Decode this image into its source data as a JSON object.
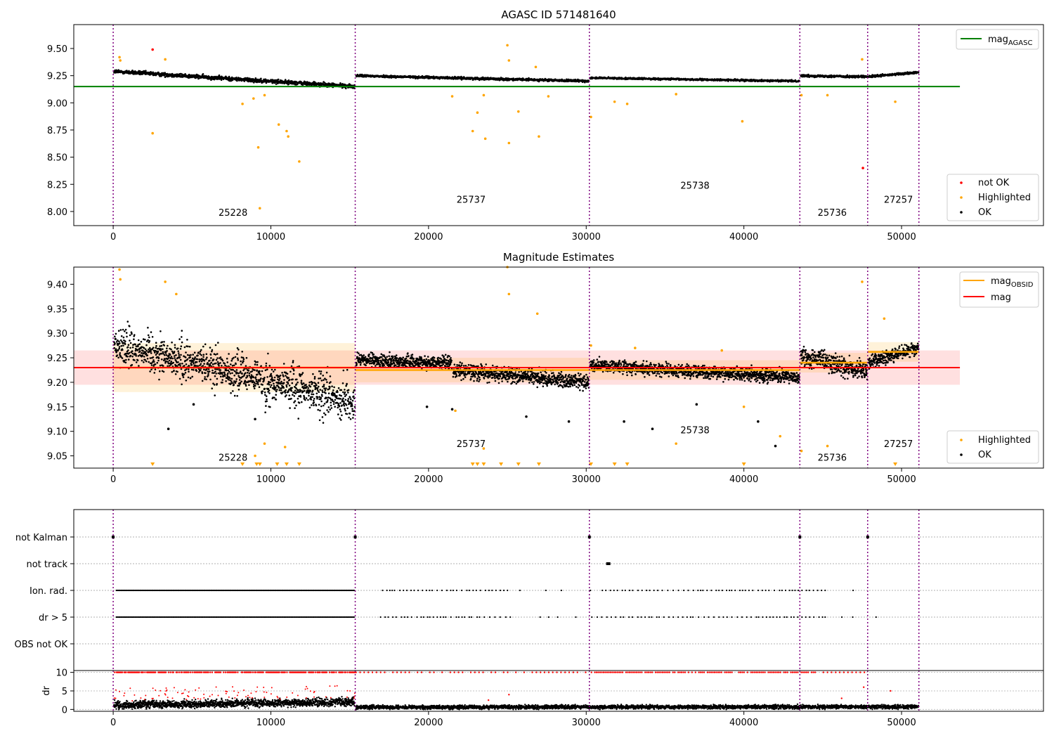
{
  "chart_data": [
    {
      "type": "scatter",
      "title": "AGASC ID 571481640",
      "x_ticks": [
        0,
        10000,
        20000,
        30000,
        40000,
        50000
      ],
      "y_ticks": [
        "8.00",
        "8.25",
        "8.50",
        "8.75",
        "9.00",
        "9.25",
        "9.50"
      ],
      "xlim": [
        -2500,
        59000
      ],
      "ylim": [
        7.87,
        9.72
      ],
      "legend": [
        {
          "label": "mag",
          "sub": "AGASC",
          "color": "#008000",
          "kind": "line"
        },
        {
          "label": "not OK",
          "color": "#ff0000",
          "kind": "dot"
        },
        {
          "label": "Highlighted",
          "color": "#ffa500",
          "kind": "dot"
        },
        {
          "label": "OK",
          "color": "#000000",
          "kind": "dot"
        }
      ],
      "mag_agasc": 9.15,
      "hline_xrange": [
        -2500,
        53700
      ],
      "obsid_boundaries": [
        0,
        15350,
        30200,
        43550,
        47850,
        51100
      ],
      "obsid_labels": [
        {
          "text": "25228",
          "x": 7600,
          "y": 7.96
        },
        {
          "text": "25737",
          "x": 22700,
          "y": 8.08
        },
        {
          "text": "25738",
          "x": 36900,
          "y": 8.21
        },
        {
          "text": "25736",
          "x": 45600,
          "y": 7.96
        },
        {
          "text": "27257",
          "x": 49800,
          "y": 8.08
        }
      ],
      "segments": [
        {
          "x0": 0,
          "x1": 15350,
          "start": 9.29,
          "end": 9.15,
          "spread": 0.035
        },
        {
          "x0": 15350,
          "x1": 30200,
          "start": 9.25,
          "end": 9.2,
          "spread": 0.02
        },
        {
          "x0": 30200,
          "x1": 43550,
          "start": 9.23,
          "end": 9.2,
          "spread": 0.015
        },
        {
          "x0": 43550,
          "x1": 47850,
          "start": 9.25,
          "end": 9.24,
          "spread": 0.02
        },
        {
          "x0": 47850,
          "x1": 51100,
          "start": 9.24,
          "end": 9.28,
          "spread": 0.02
        }
      ],
      "highlighted_points": [
        [
          400,
          9.42
        ],
        [
          450,
          9.39
        ],
        [
          2500,
          8.72
        ],
        [
          3300,
          9.4
        ],
        [
          8200,
          8.99
        ],
        [
          8900,
          9.04
        ],
        [
          9200,
          8.59
        ],
        [
          9300,
          8.03
        ],
        [
          9600,
          9.07
        ],
        [
          10500,
          8.8
        ],
        [
          11000,
          8.74
        ],
        [
          11100,
          8.69
        ],
        [
          11800,
          8.46
        ],
        [
          21500,
          9.06
        ],
        [
          22800,
          8.74
        ],
        [
          23100,
          8.91
        ],
        [
          23500,
          9.07
        ],
        [
          23600,
          8.67
        ],
        [
          25000,
          9.53
        ],
        [
          25100,
          9.39
        ],
        [
          25100,
          8.63
        ],
        [
          25700,
          8.92
        ],
        [
          26800,
          9.33
        ],
        [
          27000,
          8.69
        ],
        [
          27600,
          9.06
        ],
        [
          30300,
          8.87
        ],
        [
          31800,
          9.01
        ],
        [
          32600,
          8.99
        ],
        [
          35700,
          9.08
        ],
        [
          39900,
          8.83
        ],
        [
          43650,
          9.07
        ],
        [
          45300,
          9.07
        ],
        [
          47500,
          9.4
        ],
        [
          49600,
          9.01
        ]
      ],
      "not_ok_points": [
        [
          2500,
          9.49
        ],
        [
          47550,
          8.4
        ]
      ]
    },
    {
      "type": "scatter",
      "title": "Magnitude Estimates",
      "x_ticks": [
        0,
        10000,
        20000,
        30000,
        40000,
        50000
      ],
      "y_ticks": [
        "9.05",
        "9.10",
        "9.15",
        "9.20",
        "9.25",
        "9.30",
        "9.35",
        "9.40"
      ],
      "xlim": [
        -2500,
        59000
      ],
      "ylim": [
        9.025,
        9.435
      ],
      "legend": [
        {
          "label": "mag",
          "sub": "OBSID",
          "color": "#ffa500",
          "kind": "line"
        },
        {
          "label": "mag",
          "color": "#ff0000",
          "kind": "line"
        },
        {
          "label": "Highlighted",
          "color": "#ffa500",
          "kind": "dot"
        },
        {
          "label": "OK",
          "color": "#000000",
          "kind": "dot"
        }
      ],
      "mag": 9.23,
      "mag_band": [
        9.195,
        9.265
      ],
      "hline_xrange": [
        -2500,
        53700
      ],
      "obsid_mags": [
        {
          "x0": 0,
          "x1": 15350,
          "mag": 9.23,
          "err": 0.05
        },
        {
          "x0": 15350,
          "x1": 30200,
          "mag": 9.225,
          "err": 0.025
        },
        {
          "x0": 30200,
          "x1": 43550,
          "mag": 9.225,
          "err": 0.02
        },
        {
          "x0": 43550,
          "x1": 47850,
          "mag": 9.24,
          "err": 0.02
        },
        {
          "x0": 47850,
          "x1": 51100,
          "mag": 9.262,
          "err": 0.02
        }
      ],
      "obsid_labels": [
        {
          "text": "25228",
          "x": 7600,
          "y": 9.04
        },
        {
          "text": "25737",
          "x": 22700,
          "y": 9.068
        },
        {
          "text": "25738",
          "x": 36900,
          "y": 9.096
        },
        {
          "text": "25736",
          "x": 45600,
          "y": 9.04
        },
        {
          "text": "27257",
          "x": 49800,
          "y": 9.068
        }
      ],
      "segments": [
        {
          "x0": 0,
          "x1": 15350,
          "start": 9.28,
          "end": 9.16,
          "spread": 0.07
        },
        {
          "x0": 15350,
          "x1": 21500,
          "start": 9.245,
          "end": 9.24,
          "spread": 0.025
        },
        {
          "x0": 21500,
          "x1": 30200,
          "start": 9.225,
          "end": 9.2,
          "spread": 0.03
        },
        {
          "x0": 30200,
          "x1": 43550,
          "start": 9.235,
          "end": 9.21,
          "spread": 0.025
        },
        {
          "x0": 43550,
          "x1": 47850,
          "start": 9.255,
          "end": 9.22,
          "spread": 0.04
        },
        {
          "x0": 47850,
          "x1": 51100,
          "start": 9.24,
          "end": 9.27,
          "spread": 0.03
        }
      ],
      "highlighted_points": [
        [
          400,
          9.43
        ],
        [
          450,
          9.41
        ],
        [
          3300,
          9.405
        ],
        [
          4000,
          9.38
        ],
        [
          9000,
          9.05
        ],
        [
          9600,
          9.075
        ],
        [
          10900,
          9.068
        ],
        [
          21700,
          9.142
        ],
        [
          23500,
          9.065
        ],
        [
          25000,
          9.435
        ],
        [
          25100,
          9.38
        ],
        [
          26900,
          9.34
        ],
        [
          30300,
          9.275
        ],
        [
          33100,
          9.27
        ],
        [
          35700,
          9.075
        ],
        [
          38600,
          9.265
        ],
        [
          40000,
          9.15
        ],
        [
          42300,
          9.09
        ],
        [
          43650,
          9.06
        ],
        [
          45300,
          9.07
        ],
        [
          47500,
          9.405
        ],
        [
          48900,
          9.33
        ]
      ],
      "marker_points": [
        2500,
        8200,
        9100,
        9300,
        10400,
        11000,
        11800,
        22800,
        23100,
        23500,
        24600,
        25700,
        27000,
        30300,
        31800,
        32600,
        40000,
        49600
      ],
      "ok_outliers": [
        [
          3500,
          9.105
        ],
        [
          5100,
          9.155
        ],
        [
          9000,
          9.125
        ],
        [
          19900,
          9.15
        ],
        [
          21500,
          9.145
        ],
        [
          26200,
          9.13
        ],
        [
          28900,
          9.12
        ],
        [
          32400,
          9.12
        ],
        [
          34200,
          9.105
        ],
        [
          37000,
          9.155
        ],
        [
          40900,
          9.12
        ],
        [
          42000,
          9.07
        ]
      ]
    },
    {
      "type": "scatter",
      "title": "",
      "categories": [
        "not Kalman",
        "not track",
        "Ion. rad.",
        "dr > 5",
        "OBS not OK"
      ],
      "xlim": [
        -2500,
        59000
      ],
      "flags": {
        "not Kalman": [
          0,
          15350,
          30200,
          43550,
          47850
        ],
        "not track": [
          31400
        ],
        "Ion. rad.": {
          "dense": [
            [
              100,
              15300
            ]
          ],
          "sparse_from": 15400,
          "sparse_to": 47000
        },
        "dr > 5": {
          "dense": [
            [
              100,
              15300
            ]
          ],
          "sparse_from": 15400,
          "sparse_to": 49300
        }
      }
    },
    {
      "type": "scatter",
      "ylabel": "dr",
      "x_ticks": [
        0,
        10000,
        20000,
        30000,
        40000,
        50000
      ],
      "y_ticks": [
        "0",
        "5",
        "10"
      ],
      "xlim": [
        -2500,
        59000
      ],
      "ylim": [
        -0.5,
        10.5
      ],
      "segments": [
        {
          "x0": 0,
          "x1": 15350,
          "start": 1.2,
          "end": 2.0,
          "spread": 1.0
        },
        {
          "x0": 15350,
          "x1": 51100,
          "start": 0.6,
          "end": 0.7,
          "spread": 0.5
        }
      ]
    }
  ]
}
